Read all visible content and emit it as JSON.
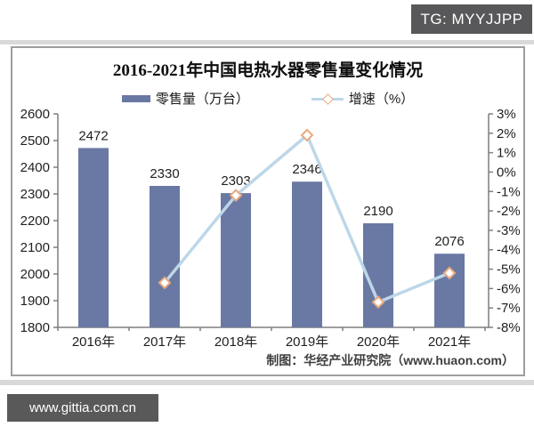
{
  "badges": {
    "tg": "TG: MYYJJPP",
    "site": "www.gittia.com.cn"
  },
  "caption": "制图：华经产业研究院（www.huaon.com）",
  "chart_data": {
    "type": "bar",
    "title": "2016-2021年中国电热水器零售量变化情况",
    "categories": [
      "2016年",
      "2017年",
      "2018年",
      "2019年",
      "2020年",
      "2021年"
    ],
    "series": [
      {
        "name": "零售量（万台）",
        "type": "bar",
        "axis": "left",
        "values": [
          2472,
          2330,
          2303,
          2346,
          2190,
          2076
        ],
        "color": "#6a79a3"
      },
      {
        "name": "增速（%）",
        "type": "line",
        "axis": "right",
        "values": [
          null,
          -5.7,
          -1.2,
          1.9,
          -6.7,
          -5.2
        ],
        "color": "#bdd7e9",
        "marker_color": "#e8a97e"
      }
    ],
    "left_axis": {
      "min": 1800,
      "max": 2600,
      "step": 100,
      "labels": [
        "2600",
        "2500",
        "2400",
        "2300",
        "2200",
        "2100",
        "2000",
        "1900",
        "1800"
      ]
    },
    "right_axis": {
      "min": -8,
      "max": 3,
      "step": 1,
      "labels": [
        "3%",
        "2%",
        "1%",
        "0%",
        "-1%",
        "-2%",
        "-3%",
        "-4%",
        "-5%",
        "-6%",
        "-7%",
        "-8%"
      ]
    },
    "legend_position": "top",
    "grid": false,
    "axis_color": "#7f7f7f",
    "label_color": "#1f1f1f"
  }
}
